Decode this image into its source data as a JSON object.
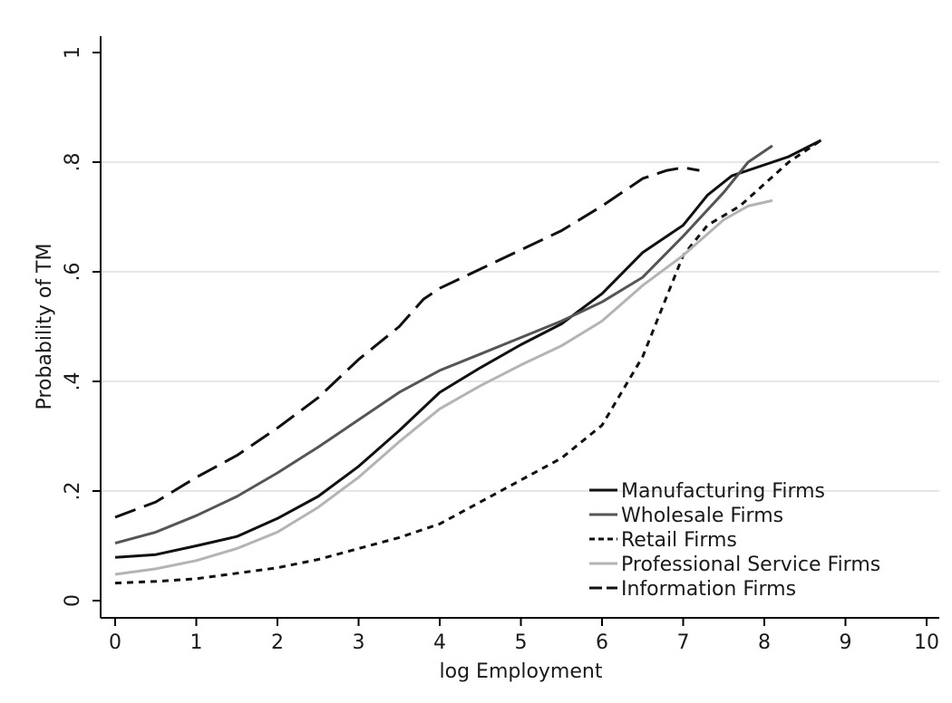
{
  "chart_data": {
    "type": "line",
    "xlabel": "log Employment",
    "ylabel": "Probability of TM",
    "xlim": [
      0,
      10
    ],
    "ylim": [
      0,
      1
    ],
    "x_ticks": [
      0,
      1,
      2,
      3,
      4,
      5,
      6,
      7,
      8,
      9,
      10
    ],
    "x_tick_labels": [
      "0",
      "1",
      "2",
      "3",
      "4",
      "5",
      "6",
      "7",
      "8",
      "9",
      "10"
    ],
    "y_ticks": [
      0,
      0.2,
      0.4,
      0.6,
      0.8,
      1
    ],
    "y_tick_labels": [
      "0",
      ".2",
      ".4",
      ".6",
      ".8",
      "1"
    ],
    "grid": "horizontal",
    "legend_position": "bottom-right",
    "series": [
      {
        "name": "Manufacturing Firms",
        "color": "#111111",
        "dash": "solid",
        "points": [
          [
            0,
            0.079
          ],
          [
            0.5,
            0.084
          ],
          [
            1,
            0.1
          ],
          [
            1.5,
            0.117
          ],
          [
            2,
            0.15
          ],
          [
            2.5,
            0.19
          ],
          [
            3,
            0.245
          ],
          [
            3.5,
            0.31
          ],
          [
            4,
            0.38
          ],
          [
            4.5,
            0.425
          ],
          [
            5,
            0.467
          ],
          [
            5.5,
            0.505
          ],
          [
            6,
            0.56
          ],
          [
            6.5,
            0.635
          ],
          [
            7,
            0.685
          ],
          [
            7.3,
            0.74
          ],
          [
            7.6,
            0.775
          ],
          [
            8,
            0.795
          ],
          [
            8.3,
            0.81
          ],
          [
            8.7,
            0.84
          ]
        ]
      },
      {
        "name": "Wholesale Firms",
        "color": "#555555",
        "dash": "solid",
        "points": [
          [
            0,
            0.105
          ],
          [
            0.5,
            0.125
          ],
          [
            1,
            0.155
          ],
          [
            1.5,
            0.19
          ],
          [
            2,
            0.233
          ],
          [
            2.5,
            0.28
          ],
          [
            3,
            0.33
          ],
          [
            3.5,
            0.38
          ],
          [
            4,
            0.42
          ],
          [
            4.5,
            0.45
          ],
          [
            5,
            0.48
          ],
          [
            5.5,
            0.51
          ],
          [
            6,
            0.545
          ],
          [
            6.5,
            0.59
          ],
          [
            7,
            0.665
          ],
          [
            7.5,
            0.745
          ],
          [
            7.8,
            0.8
          ],
          [
            8.1,
            0.83
          ]
        ]
      },
      {
        "name": "Retail Firms",
        "color": "#111111",
        "dash": "dotted",
        "points": [
          [
            0,
            0.032
          ],
          [
            0.5,
            0.035
          ],
          [
            1,
            0.04
          ],
          [
            1.5,
            0.05
          ],
          [
            2,
            0.06
          ],
          [
            2.5,
            0.075
          ],
          [
            3,
            0.095
          ],
          [
            3.5,
            0.115
          ],
          [
            4,
            0.14
          ],
          [
            4.5,
            0.18
          ],
          [
            5,
            0.22
          ],
          [
            5.5,
            0.26
          ],
          [
            6,
            0.32
          ],
          [
            6.5,
            0.445
          ],
          [
            7,
            0.63
          ],
          [
            7.3,
            0.685
          ],
          [
            7.7,
            0.72
          ],
          [
            8,
            0.76
          ],
          [
            8.3,
            0.8
          ],
          [
            8.7,
            0.84
          ]
        ]
      },
      {
        "name": "Professional Service Firms",
        "color": "#b4b4b4",
        "dash": "solid",
        "points": [
          [
            0,
            0.048
          ],
          [
            0.5,
            0.058
          ],
          [
            1,
            0.073
          ],
          [
            1.5,
            0.095
          ],
          [
            2,
            0.125
          ],
          [
            2.5,
            0.17
          ],
          [
            3,
            0.225
          ],
          [
            3.5,
            0.29
          ],
          [
            4,
            0.35
          ],
          [
            4.5,
            0.392
          ],
          [
            5,
            0.43
          ],
          [
            5.5,
            0.465
          ],
          [
            6,
            0.51
          ],
          [
            6.5,
            0.575
          ],
          [
            7,
            0.63
          ],
          [
            7.5,
            0.695
          ],
          [
            7.8,
            0.72
          ],
          [
            8.1,
            0.73
          ]
        ]
      },
      {
        "name": "Information Firms",
        "color": "#111111",
        "dash": "dashed",
        "points": [
          [
            0,
            0.152
          ],
          [
            0.5,
            0.18
          ],
          [
            1,
            0.225
          ],
          [
            1.5,
            0.265
          ],
          [
            2,
            0.315
          ],
          [
            2.5,
            0.37
          ],
          [
            3,
            0.44
          ],
          [
            3.5,
            0.5
          ],
          [
            3.8,
            0.55
          ],
          [
            4,
            0.57
          ],
          [
            4.5,
            0.605
          ],
          [
            5,
            0.64
          ],
          [
            5.5,
            0.675
          ],
          [
            6,
            0.72
          ],
          [
            6.5,
            0.77
          ],
          [
            6.8,
            0.785
          ],
          [
            7,
            0.79
          ],
          [
            7.2,
            0.785
          ]
        ]
      }
    ]
  }
}
